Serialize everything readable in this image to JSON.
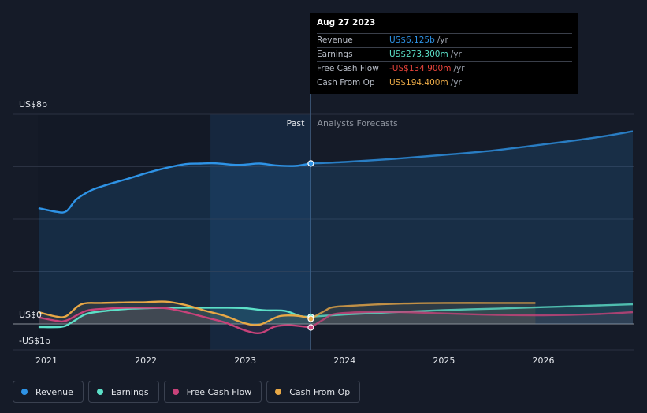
{
  "chart_data": {
    "type": "line",
    "x_unit": "year",
    "xlim": [
      2020.88,
      2026.9
    ],
    "ylim": [
      -1,
      8
    ],
    "y_axis": {
      "top_label": "US$8b",
      "zero_label": "US$0",
      "bottom_label": "-US$1b"
    },
    "gridlines": [
      8,
      6,
      4,
      2,
      0
    ],
    "x_ticks": [
      {
        "value": 2021,
        "label": "2021"
      },
      {
        "value": 2022,
        "label": "2022"
      },
      {
        "value": 2023,
        "label": "2023"
      },
      {
        "value": 2024,
        "label": "2024"
      },
      {
        "value": 2025,
        "label": "2025"
      },
      {
        "value": 2026,
        "label": "2026"
      }
    ],
    "divider_x": 2023.66,
    "shaded_past_start": 2022.65,
    "past_label": "Past",
    "forecast_label": "Analysts Forecasts",
    "series": [
      {
        "name": "Revenue",
        "color": "#2e93e6",
        "fill": true,
        "points": [
          [
            2020.92,
            4.42
          ],
          [
            2021.1,
            4.28
          ],
          [
            2021.2,
            4.3
          ],
          [
            2021.3,
            4.75
          ],
          [
            2021.45,
            5.1
          ],
          [
            2021.6,
            5.3
          ],
          [
            2021.8,
            5.52
          ],
          [
            2022.0,
            5.75
          ],
          [
            2022.2,
            5.95
          ],
          [
            2022.4,
            6.1
          ],
          [
            2022.55,
            6.12
          ],
          [
            2022.7,
            6.13
          ],
          [
            2022.9,
            6.07
          ],
          [
            2023.0,
            6.08
          ],
          [
            2023.15,
            6.12
          ],
          [
            2023.3,
            6.05
          ],
          [
            2023.5,
            6.03
          ],
          [
            2023.66,
            6.125
          ]
        ],
        "forecast": [
          [
            2023.66,
            6.125
          ],
          [
            2024.0,
            6.18
          ],
          [
            2024.5,
            6.3
          ],
          [
            2025.0,
            6.45
          ],
          [
            2025.5,
            6.62
          ],
          [
            2026.0,
            6.85
          ],
          [
            2026.5,
            7.1
          ],
          [
            2026.9,
            7.35
          ]
        ]
      },
      {
        "name": "Earnings",
        "color": "#5ce0c8",
        "points": [
          [
            2020.92,
            -0.12
          ],
          [
            2021.15,
            -0.11
          ],
          [
            2021.25,
            0.05
          ],
          [
            2021.4,
            0.38
          ],
          [
            2021.6,
            0.5
          ],
          [
            2021.8,
            0.57
          ],
          [
            2022.0,
            0.6
          ],
          [
            2022.2,
            0.62
          ],
          [
            2022.5,
            0.62
          ],
          [
            2022.8,
            0.62
          ],
          [
            2023.0,
            0.6
          ],
          [
            2023.2,
            0.52
          ],
          [
            2023.4,
            0.5
          ],
          [
            2023.55,
            0.3
          ],
          [
            2023.66,
            0.273
          ]
        ],
        "forecast": [
          [
            2023.66,
            0.273
          ],
          [
            2024.0,
            0.36
          ],
          [
            2024.5,
            0.45
          ],
          [
            2025.0,
            0.53
          ],
          [
            2025.5,
            0.58
          ],
          [
            2026.0,
            0.64
          ],
          [
            2026.5,
            0.7
          ],
          [
            2026.9,
            0.75
          ]
        ]
      },
      {
        "name": "Free Cash Flow",
        "color": "#c8427a",
        "points": [
          [
            2020.92,
            0.25
          ],
          [
            2021.1,
            0.12
          ],
          [
            2021.2,
            0.13
          ],
          [
            2021.4,
            0.5
          ],
          [
            2021.6,
            0.58
          ],
          [
            2021.8,
            0.62
          ],
          [
            2022.0,
            0.62
          ],
          [
            2022.2,
            0.6
          ],
          [
            2022.4,
            0.45
          ],
          [
            2022.6,
            0.25
          ],
          [
            2022.8,
            0.05
          ],
          [
            2023.0,
            -0.25
          ],
          [
            2023.15,
            -0.35
          ],
          [
            2023.3,
            -0.1
          ],
          [
            2023.45,
            -0.05
          ],
          [
            2023.66,
            -0.135
          ]
        ],
        "forecast": [
          [
            2023.66,
            -0.135
          ],
          [
            2023.8,
            0.2
          ],
          [
            2023.9,
            0.38
          ],
          [
            2024.2,
            0.45
          ],
          [
            2024.6,
            0.45
          ],
          [
            2025.0,
            0.4
          ],
          [
            2025.5,
            0.35
          ],
          [
            2026.0,
            0.33
          ],
          [
            2026.5,
            0.37
          ],
          [
            2026.9,
            0.45
          ]
        ]
      },
      {
        "name": "Cash From Op",
        "color": "#e8a846",
        "points": [
          [
            2020.92,
            0.45
          ],
          [
            2021.1,
            0.28
          ],
          [
            2021.2,
            0.3
          ],
          [
            2021.35,
            0.75
          ],
          [
            2021.55,
            0.8
          ],
          [
            2021.8,
            0.82
          ],
          [
            2022.0,
            0.83
          ],
          [
            2022.2,
            0.85
          ],
          [
            2022.4,
            0.72
          ],
          [
            2022.6,
            0.5
          ],
          [
            2022.8,
            0.3
          ],
          [
            2023.0,
            0.02
          ],
          [
            2023.15,
            -0.02
          ],
          [
            2023.35,
            0.3
          ],
          [
            2023.55,
            0.3
          ],
          [
            2023.66,
            0.194
          ]
        ],
        "forecast": [
          [
            2023.66,
            0.194
          ],
          [
            2023.8,
            0.5
          ],
          [
            2023.9,
            0.65
          ],
          [
            2024.2,
            0.72
          ],
          [
            2024.6,
            0.78
          ],
          [
            2025.0,
            0.8
          ],
          [
            2025.5,
            0.8
          ],
          [
            2025.92,
            0.8
          ]
        ]
      }
    ]
  },
  "tooltip": {
    "date": "Aug 27 2023",
    "rows": [
      {
        "label": "Revenue",
        "value": "US$6.125b",
        "unit": "/yr",
        "color": "#2e93e6"
      },
      {
        "label": "Earnings",
        "value": "US$273.300m",
        "unit": "/yr",
        "color": "#5ce0c8"
      },
      {
        "label": "Free Cash Flow",
        "value": "-US$134.900m",
        "unit": "/yr",
        "color": "#e8433a"
      },
      {
        "label": "Cash From Op",
        "value": "US$194.400m",
        "unit": "/yr",
        "color": "#e8a846"
      }
    ]
  },
  "legend": [
    {
      "label": "Revenue",
      "color": "#2e93e6"
    },
    {
      "label": "Earnings",
      "color": "#5ce0c8"
    },
    {
      "label": "Free Cash Flow",
      "color": "#c8427a"
    },
    {
      "label": "Cash From Op",
      "color": "#e8a846"
    }
  ]
}
